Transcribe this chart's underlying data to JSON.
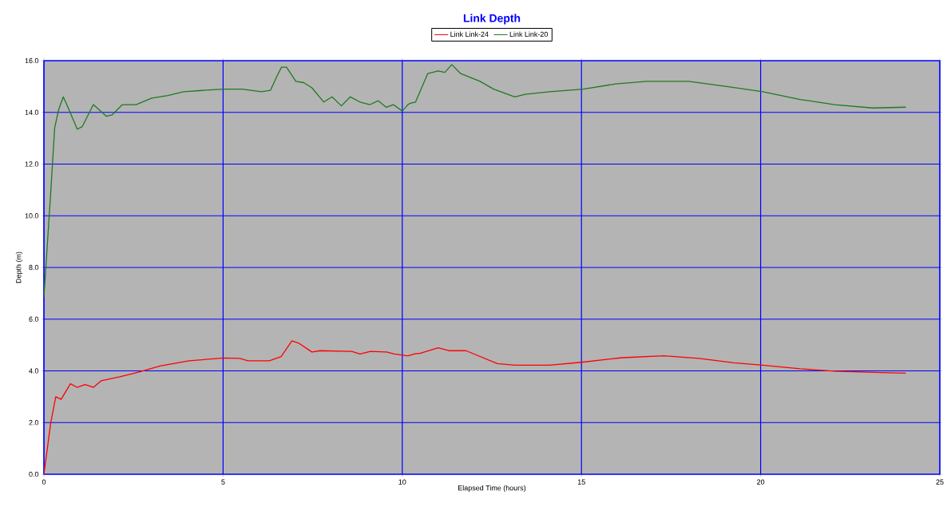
{
  "chart_data": {
    "type": "line",
    "title": "Link Depth",
    "xlabel": "Elapsed Time (hours)",
    "ylabel": "Depth (m)",
    "xlim": [
      0,
      25
    ],
    "xticks": [
      0,
      5,
      10,
      15,
      20,
      25
    ],
    "ylim": [
      0,
      16
    ],
    "yticks": [
      {
        "value": 0,
        "label": "0.0"
      },
      {
        "value": 2,
        "label": "2.0"
      },
      {
        "value": 4,
        "label": "4.0"
      },
      {
        "value": 6,
        "label": "6.0"
      },
      {
        "value": 8,
        "label": "8.0"
      },
      {
        "value": 10,
        "label": "10.0"
      },
      {
        "value": 12,
        "label": "12.0"
      },
      {
        "value": 14,
        "label": "14.0"
      },
      {
        "value": 16,
        "label": "16.0"
      }
    ],
    "grid": true,
    "legend": "top",
    "marker": "none",
    "line_style": "solid",
    "series": [
      {
        "name": "Link Link-24",
        "color": "#ff0000",
        "x": [
          0,
          0.19,
          0.33,
          0.48,
          0.74,
          0.93,
          1.15,
          1.38,
          1.6,
          2.12,
          2.64,
          3.24,
          4.05,
          5.02,
          5.47,
          5.69,
          6.29,
          6.62,
          6.92,
          7.1,
          7.48,
          7.7,
          8.59,
          8.82,
          9.11,
          9.56,
          9.78,
          10.16,
          10.38,
          10.51,
          11.0,
          11.3,
          11.78,
          12.65,
          13.14,
          14.11,
          15.05,
          16.14,
          17.3,
          18.28,
          19.25,
          20.06,
          21.1,
          22.07,
          23.13,
          24.05
        ],
        "values": [
          0,
          1.98,
          3.0,
          2.9,
          3.5,
          3.36,
          3.47,
          3.36,
          3.62,
          3.77,
          3.95,
          4.19,
          4.39,
          4.5,
          4.48,
          4.39,
          4.39,
          4.55,
          5.16,
          5.08,
          4.73,
          4.78,
          4.75,
          4.65,
          4.75,
          4.73,
          4.65,
          4.58,
          4.67,
          4.68,
          4.89,
          4.78,
          4.78,
          4.28,
          4.22,
          4.22,
          4.34,
          4.51,
          4.58,
          4.48,
          4.31,
          4.22,
          4.08,
          3.99,
          3.94,
          3.91
        ]
      },
      {
        "name": "Link Link-20",
        "color": "#1f7a1f",
        "x": [
          0,
          0.19,
          0.3,
          0.41,
          0.54,
          0.67,
          0.93,
          1.07,
          1.38,
          1.74,
          1.9,
          2.19,
          2.57,
          3.01,
          3.46,
          3.9,
          4.43,
          5.02,
          5.53,
          6.07,
          6.32,
          6.52,
          6.63,
          6.77,
          7.03,
          7.25,
          7.48,
          7.81,
          8.04,
          8.3,
          8.55,
          8.82,
          9.1,
          9.33,
          9.55,
          9.75,
          10.0,
          10.16,
          10.22,
          10.37,
          10.71,
          11.0,
          11.19,
          11.38,
          11.63,
          12.17,
          12.55,
          13.14,
          13.43,
          14.11,
          15.05,
          15.95,
          16.82,
          17.99,
          19.06,
          20.06,
          21.1,
          22.07,
          23.13,
          24.05
        ],
        "values": [
          6.85,
          10.9,
          13.4,
          14.1,
          14.6,
          14.2,
          13.35,
          13.45,
          14.3,
          13.85,
          13.9,
          14.3,
          14.3,
          14.55,
          14.65,
          14.8,
          14.85,
          14.9,
          14.9,
          14.8,
          14.85,
          15.45,
          15.75,
          15.75,
          15.2,
          15.15,
          14.95,
          14.4,
          14.6,
          14.25,
          14.6,
          14.4,
          14.3,
          14.45,
          14.2,
          14.3,
          14.05,
          14.3,
          14.35,
          14.4,
          15.5,
          15.6,
          15.55,
          15.85,
          15.5,
          15.2,
          14.9,
          14.6,
          14.7,
          14.8,
          14.9,
          15.1,
          15.2,
          15.2,
          15.0,
          14.8,
          14.5,
          14.3,
          14.17,
          14.2
        ]
      }
    ]
  }
}
